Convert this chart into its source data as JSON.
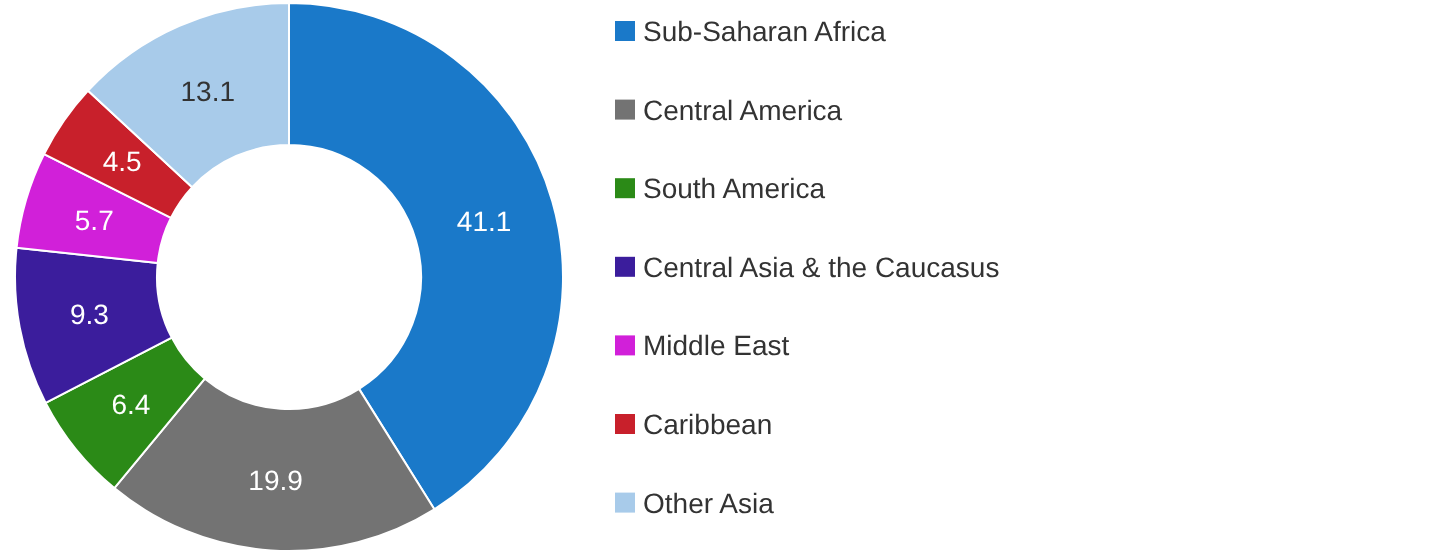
{
  "chart_data": {
    "type": "donut",
    "categories": [
      "Sub-Saharan Africa",
      "Central America",
      "South America",
      "Central Asia & the Caucasus",
      "Middle East",
      "Caribbean",
      "Other Asia"
    ],
    "values": [
      41.1,
      19.9,
      6.4,
      9.3,
      5.7,
      4.5,
      13.1
    ],
    "colors": [
      "#1a79c9",
      "#737373",
      "#2b8a17",
      "#3b1d9c",
      "#d120d9",
      "#c8202b",
      "#a8cbea"
    ],
    "data_labels": true,
    "legend": "right"
  }
}
